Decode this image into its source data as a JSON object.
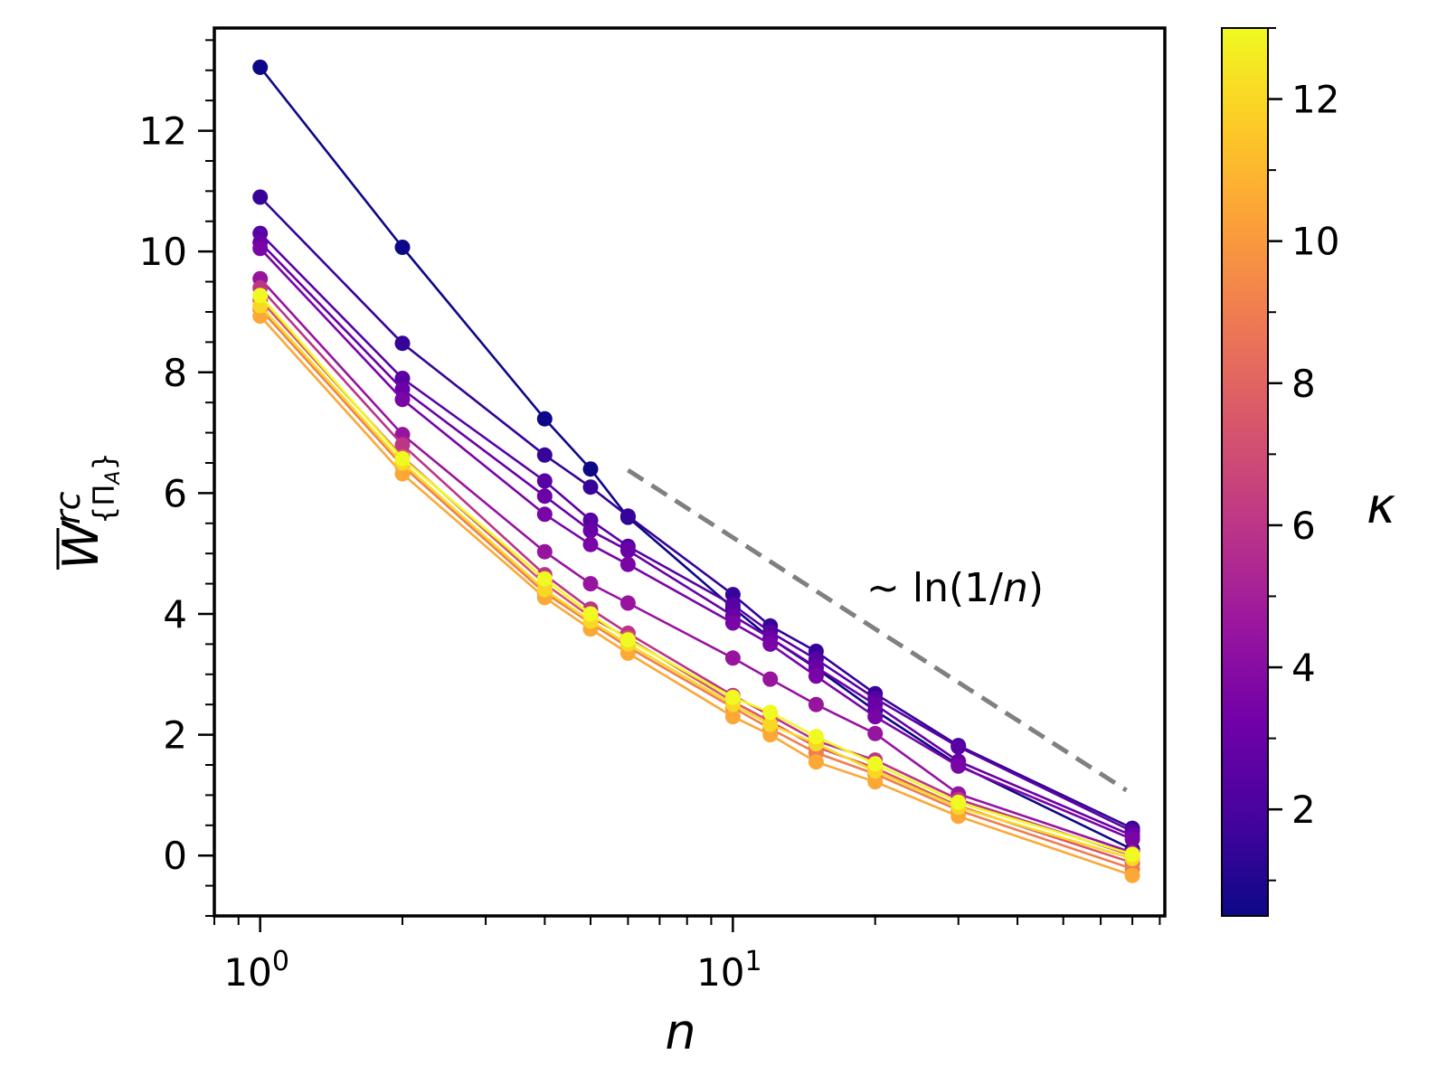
{
  "chart_data": {
    "type": "line",
    "xscale": "log",
    "xlabel": "n",
    "ylabel": "W",
    "ylabel_sup": "rc",
    "ylabel_sub": "{Π",
    "ylabel_sub_index": "A",
    "ylabel_sub_close": "}",
    "xlim": [
      0.8,
      82
    ],
    "ylim": [
      -1,
      13.7
    ],
    "x_tick_labels": [
      {
        "value": 1,
        "base": "10",
        "exp": "0"
      },
      {
        "value": 10,
        "base": "10",
        "exp": "1"
      }
    ],
    "y_ticks": [
      0,
      2,
      4,
      6,
      8,
      10,
      12
    ],
    "y_tick_labels": [
      "0",
      "2",
      "4",
      "6",
      "8",
      "10",
      "12"
    ],
    "x": [
      1,
      2,
      4,
      5,
      6,
      10,
      12,
      15,
      20,
      30,
      70
    ],
    "series": [
      {
        "name": "κ=0.5",
        "kappa": 0.5,
        "values": [
          13.05,
          10.07,
          7.23,
          6.4,
          5.6,
          4.1,
          3.6,
          3.1,
          2.4,
          1.5,
          0.1
        ]
      },
      {
        "name": "κ=1.5",
        "kappa": 1.5,
        "values": [
          10.9,
          8.48,
          6.63,
          6.1,
          5.62,
          4.32,
          3.8,
          3.38,
          2.68,
          1.82,
          0.45
        ]
      },
      {
        "name": "κ=2.5",
        "kappa": 2.5,
        "values": [
          10.3,
          7.9,
          6.2,
          5.55,
          5.12,
          4.15,
          3.7,
          3.25,
          2.6,
          1.8,
          0.4
        ]
      },
      {
        "name": "κ=3.0",
        "kappa": 3.0,
        "values": [
          10.15,
          7.72,
          5.95,
          5.38,
          5.05,
          3.97,
          3.6,
          3.12,
          2.5,
          1.56,
          0.33
        ]
      },
      {
        "name": "κ=3.5",
        "kappa": 3.5,
        "values": [
          10.05,
          7.55,
          5.65,
          5.15,
          4.82,
          3.85,
          3.5,
          2.97,
          2.3,
          1.48,
          0.27
        ]
      },
      {
        "name": "κ=4.5",
        "kappa": 4.5,
        "values": [
          9.55,
          6.97,
          5.03,
          4.5,
          4.18,
          3.27,
          2.92,
          2.5,
          2.02,
          1.02,
          0.05
        ]
      },
      {
        "name": "κ=6",
        "kappa": 6.0,
        "values": [
          9.4,
          6.8,
          4.65,
          4.08,
          3.68,
          2.65,
          2.32,
          1.9,
          1.58,
          0.93,
          0.0
        ]
      },
      {
        "name": "κ=7.5",
        "kappa": 7.5,
        "values": [
          9.2,
          6.6,
          4.5,
          3.95,
          3.6,
          2.55,
          2.22,
          1.8,
          1.45,
          0.82,
          -0.12
        ]
      },
      {
        "name": "κ=9",
        "kappa": 9.0,
        "values": [
          9.05,
          6.45,
          4.35,
          3.85,
          3.45,
          2.45,
          2.1,
          1.7,
          1.35,
          0.75,
          -0.22
        ]
      },
      {
        "name": "κ=10.5",
        "kappa": 10.5,
        "values": [
          8.93,
          6.32,
          4.27,
          3.75,
          3.35,
          2.3,
          2.0,
          1.55,
          1.22,
          0.65,
          -0.33
        ]
      },
      {
        "name": "κ=12",
        "kappa": 12.0,
        "values": [
          9.1,
          6.5,
          4.4,
          3.88,
          3.5,
          2.5,
          2.17,
          1.85,
          1.4,
          0.8,
          -0.05
        ]
      },
      {
        "name": "κ=13",
        "kappa": 13.0,
        "values": [
          9.27,
          6.57,
          4.58,
          4.0,
          3.57,
          2.62,
          2.37,
          1.97,
          1.52,
          0.88,
          0.02
        ]
      }
    ],
    "reference_line": {
      "label_prefix": "~ ln(1/",
      "label_var": "n",
      "label_suffix": ")",
      "x": [
        6,
        68
      ],
      "y": [
        6.38,
        1.08
      ],
      "color": "#808080"
    },
    "colorbar": {
      "label": "κ",
      "range": [
        0.5,
        13
      ],
      "ticks": [
        2,
        4,
        6,
        8,
        10,
        12
      ],
      "tick_labels": [
        "2",
        "4",
        "6",
        "8",
        "10",
        "12"
      ],
      "colormap": "plasma",
      "stops": [
        "#0d0887",
        "#46039f",
        "#7201a8",
        "#9c179e",
        "#bd3786",
        "#d8576b",
        "#ed7953",
        "#fb9f3a",
        "#fdca26",
        "#f0f921"
      ]
    }
  }
}
